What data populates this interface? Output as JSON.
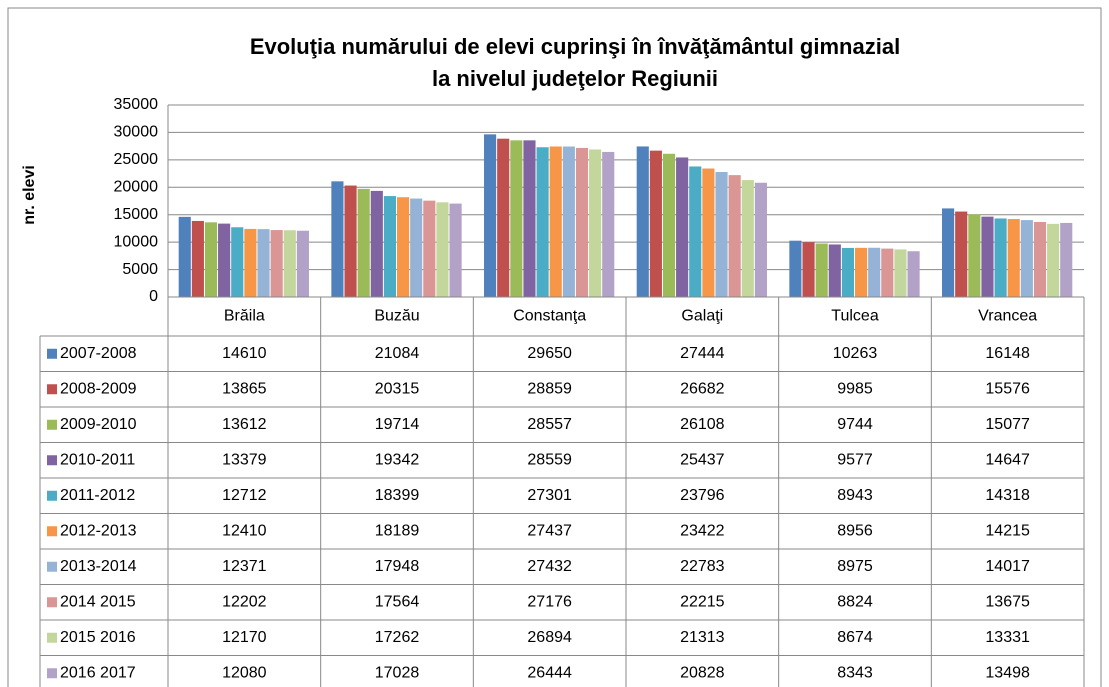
{
  "chart_data": {
    "type": "bar",
    "title": "Evoluţia numărului de elevi cuprinşi în învăţământul gimnazial",
    "subtitle": "la nivelul judeţelor Regiunii",
    "y_label": "nr. elevi",
    "categories": [
      "Brăila",
      "Buzău",
      "Constanţa",
      "Galaţi",
      "Tulcea",
      "Vrancea"
    ],
    "series": [
      {
        "name": "2007-2008",
        "color": "#4f81bd",
        "values": [
          14610,
          21084,
          29650,
          27444,
          10263,
          16148
        ]
      },
      {
        "name": "2008-2009",
        "color": "#c0504d",
        "values": [
          13865,
          20315,
          28859,
          26682,
          9985,
          15576
        ]
      },
      {
        "name": "2009-2010",
        "color": "#9bbb59",
        "values": [
          13612,
          19714,
          28557,
          26108,
          9744,
          15077
        ]
      },
      {
        "name": "2010-2011",
        "color": "#8064a2",
        "values": [
          13379,
          19342,
          28559,
          25437,
          9577,
          14647
        ]
      },
      {
        "name": "2011-2012",
        "color": "#4bacc6",
        "values": [
          12712,
          18399,
          27301,
          23796,
          8943,
          14318
        ]
      },
      {
        "name": "2012-2013",
        "color": "#f79646",
        "values": [
          12410,
          18189,
          27437,
          23422,
          8956,
          14215
        ]
      },
      {
        "name": "2013-2014",
        "color": "#95b3d7",
        "values": [
          12371,
          17948,
          27432,
          22783,
          8975,
          14017
        ]
      },
      {
        "name": "2014 2015",
        "color": "#d99694",
        "values": [
          12202,
          17564,
          27176,
          22215,
          8824,
          13675
        ]
      },
      {
        "name": "2015 2016",
        "color": "#c3d69b",
        "values": [
          12170,
          17262,
          26894,
          21313,
          8674,
          13331
        ]
      },
      {
        "name": "2016 2017",
        "color": "#b3a2c7",
        "values": [
          12080,
          17028,
          26444,
          20828,
          8343,
          13498
        ]
      }
    ],
    "ylim": [
      0,
      35000
    ],
    "yticks": [
      0,
      5000,
      10000,
      15000,
      20000,
      25000,
      30000,
      35000
    ],
    "grid": true
  }
}
